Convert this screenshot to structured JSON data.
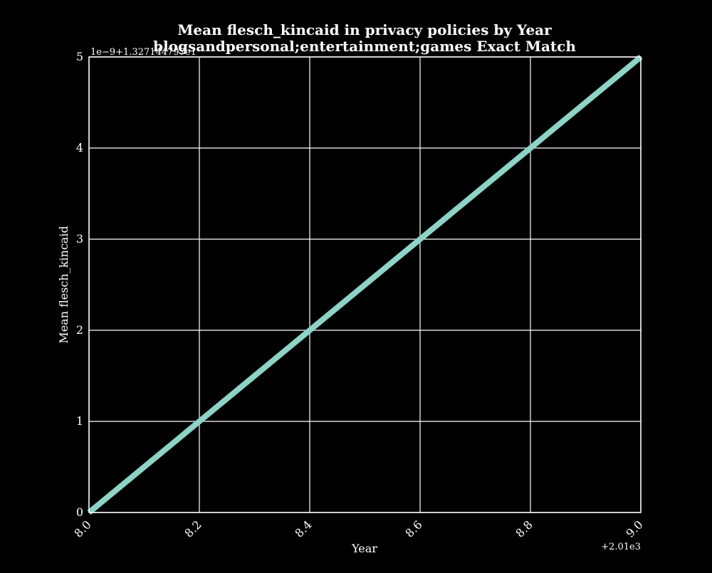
{
  "chart_data": {
    "type": "line",
    "title_line1": "Mean flesch_kincaid in privacy policies by Year",
    "title_line2": "blogsandpersonal;entertainment;games Exact Match",
    "xlabel": "Year",
    "ylabel": "Mean flesch_kincaid",
    "x_offset_label": "+2.01e3",
    "y_offset_label": "1e−9+1.327144797e1",
    "xlim": [
      8.0,
      9.0
    ],
    "ylim": [
      0,
      5
    ],
    "x_ticks": [
      "8.0",
      "8.2",
      "8.4",
      "8.6",
      "8.8",
      "9.0"
    ],
    "x_tick_values": [
      8.0,
      8.2,
      8.4,
      8.6,
      8.8,
      9.0
    ],
    "y_ticks": [
      "0",
      "1",
      "2",
      "3",
      "4",
      "5"
    ],
    "y_tick_values": [
      0,
      1,
      2,
      3,
      4,
      5
    ],
    "grid": true,
    "series": [
      {
        "name": "Mean flesch_kincaid",
        "color": "#8dd3c7",
        "x": [
          8.0,
          9.0
        ],
        "y": [
          0,
          5
        ]
      }
    ],
    "colors": {
      "background": "#000000",
      "foreground": "#ffffff",
      "grid": "#ffffff"
    }
  }
}
